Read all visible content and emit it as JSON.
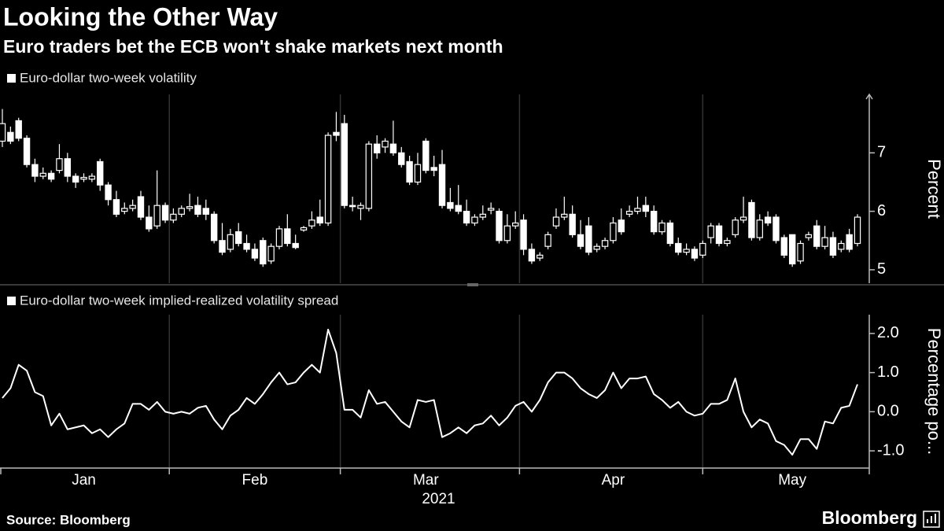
{
  "title": "Looking the Other Way",
  "subtitle": "Euro traders bet the ECB won't shake markets next month",
  "source": "Source: Bloomberg",
  "logo": "Bloomberg",
  "chart_data": [
    {
      "type": "candlestick",
      "ylabel": "Percent",
      "ylim": [
        4.77,
        8.0
      ],
      "yticks": [
        5,
        6,
        7
      ],
      "series": [
        {
          "name": "Euro-dollar two-week volatility",
          "color": "#ffffff",
          "open": [
            7.2,
            7.35,
            7.55,
            7.25,
            6.8,
            6.6,
            6.65,
            6.7,
            6.9,
            6.6,
            6.55,
            6.55,
            6.85,
            6.45,
            6.2,
            6.0,
            6.05,
            6.25,
            5.9,
            5.75,
            6.1,
            5.85,
            5.95,
            6.05,
            6.1,
            6.05,
            5.95,
            5.5,
            5.35,
            5.65,
            5.45,
            5.35,
            5.5,
            5.15,
            5.4,
            5.7,
            5.45,
            5.68,
            5.75,
            5.9,
            5.8,
            7.35,
            7.5,
            6.1,
            6.05,
            6.05,
            7.15,
            7.1,
            7.15,
            7.0,
            6.85,
            6.5,
            7.2,
            6.75,
            6.8,
            6.15,
            6.1,
            6.0,
            5.8,
            5.9,
            6.02,
            6.0,
            5.5,
            5.75,
            5.85,
            5.35,
            5.2,
            5.4,
            5.75,
            5.9,
            5.95,
            5.6,
            5.75,
            5.35,
            5.4,
            5.5,
            5.85,
            5.95,
            6.0,
            6.1,
            6.0,
            5.65,
            5.8,
            5.45,
            5.3,
            5.35,
            5.25,
            5.55,
            5.75,
            5.45,
            5.6,
            5.85,
            6.15,
            5.55,
            5.9,
            5.9,
            5.55,
            5.6,
            5.15,
            5.55,
            5.75,
            5.4,
            5.55,
            5.35,
            5.6,
            5.45
          ],
          "high": [
            7.75,
            7.45,
            7.6,
            7.3,
            6.9,
            6.75,
            6.7,
            7.15,
            7.0,
            6.65,
            6.65,
            6.65,
            6.9,
            6.5,
            6.35,
            6.15,
            6.2,
            6.35,
            6.1,
            6.7,
            6.15,
            6.05,
            6.1,
            6.3,
            6.25,
            6.2,
            6.0,
            5.8,
            5.7,
            5.8,
            5.6,
            5.45,
            5.55,
            5.45,
            5.75,
            5.95,
            5.6,
            5.75,
            6.0,
            6.2,
            7.35,
            7.7,
            7.65,
            6.25,
            6.15,
            7.2,
            7.3,
            7.25,
            7.55,
            7.1,
            6.95,
            7.0,
            7.25,
            6.95,
            7.05,
            6.4,
            6.45,
            6.2,
            5.95,
            6.1,
            6.15,
            6.05,
            5.95,
            6.0,
            5.95,
            5.45,
            5.3,
            5.65,
            6.05,
            6.25,
            6.1,
            5.85,
            5.9,
            5.45,
            5.55,
            5.9,
            6.05,
            6.1,
            6.25,
            6.25,
            6.1,
            5.85,
            5.85,
            5.55,
            5.45,
            5.4,
            5.5,
            5.8,
            5.8,
            5.55,
            5.9,
            6.25,
            6.2,
            5.95,
            6.0,
            5.95,
            5.6,
            5.6,
            5.5,
            5.65,
            5.85,
            5.75,
            5.65,
            5.5,
            5.7,
            5.95
          ],
          "low": [
            7.1,
            7.15,
            7.2,
            6.75,
            6.5,
            6.55,
            6.5,
            6.65,
            6.5,
            6.4,
            6.5,
            6.5,
            6.35,
            6.1,
            5.9,
            5.95,
            6.0,
            5.85,
            5.65,
            5.7,
            5.8,
            5.8,
            5.9,
            6.0,
            5.9,
            5.85,
            5.45,
            5.25,
            5.3,
            5.4,
            5.3,
            5.15,
            5.05,
            5.1,
            5.35,
            5.4,
            5.35,
            5.65,
            5.7,
            5.75,
            5.75,
            7.2,
            6.05,
            6.0,
            5.85,
            6.0,
            6.9,
            7.0,
            6.95,
            6.75,
            6.45,
            6.45,
            6.65,
            6.6,
            6.05,
            6.0,
            5.95,
            5.75,
            5.75,
            5.85,
            5.95,
            5.45,
            5.45,
            5.7,
            5.25,
            5.1,
            5.15,
            5.35,
            5.7,
            5.85,
            5.55,
            5.35,
            5.25,
            5.3,
            5.35,
            5.45,
            5.6,
            5.9,
            5.95,
            5.9,
            5.6,
            5.6,
            5.4,
            5.25,
            5.25,
            5.15,
            5.2,
            5.45,
            5.4,
            5.4,
            5.55,
            5.8,
            5.5,
            5.5,
            5.75,
            5.45,
            5.2,
            5.05,
            5.1,
            5.5,
            5.35,
            5.35,
            5.2,
            5.3,
            5.3,
            5.4
          ],
          "close": [
            7.5,
            7.2,
            7.25,
            6.8,
            6.6,
            6.65,
            6.55,
            6.9,
            6.6,
            6.5,
            6.58,
            6.6,
            6.45,
            6.2,
            5.95,
            6.05,
            6.1,
            5.9,
            5.7,
            6.1,
            5.85,
            5.95,
            6.05,
            6.08,
            5.95,
            5.95,
            5.5,
            5.3,
            5.6,
            5.45,
            5.35,
            5.2,
            5.1,
            5.4,
            5.7,
            5.45,
            5.38,
            5.72,
            5.85,
            5.8,
            7.3,
            7.3,
            6.1,
            6.08,
            6.1,
            7.15,
            7.0,
            7.2,
            7.0,
            6.8,
            6.5,
            6.8,
            6.7,
            6.7,
            6.1,
            6.05,
            6.0,
            5.8,
            5.9,
            5.95,
            6.05,
            5.5,
            5.75,
            5.8,
            5.35,
            5.15,
            5.25,
            5.6,
            5.9,
            5.95,
            5.6,
            5.4,
            5.3,
            5.4,
            5.5,
            5.8,
            5.65,
            6.0,
            6.05,
            6.0,
            5.65,
            5.8,
            5.45,
            5.3,
            5.35,
            5.2,
            5.45,
            5.75,
            5.45,
            5.5,
            5.85,
            5.9,
            5.55,
            5.85,
            5.8,
            5.5,
            5.25,
            5.1,
            5.45,
            5.6,
            5.4,
            5.55,
            5.25,
            5.45,
            5.35,
            5.9
          ]
        }
      ]
    },
    {
      "type": "line",
      "ylabel": "Percentage po...",
      "xlabel": "2021",
      "ylim": [
        -1.44,
        2.48
      ],
      "yticks": [
        {
          "value": 2,
          "label": "2.0"
        },
        {
          "value": 1,
          "label": "1.0"
        },
        {
          "value": 0,
          "label": "0.0"
        },
        {
          "value": -1,
          "label": "-1.0"
        }
      ],
      "categories": [
        null,
        null,
        null,
        null,
        null,
        null,
        null,
        null,
        null,
        null,
        "Jan",
        null,
        null,
        null,
        null,
        null,
        null,
        null,
        null,
        null,
        null,
        null,
        null,
        null,
        null,
        null,
        null,
        null,
        null,
        null,
        null,
        "Feb",
        null,
        null,
        null,
        null,
        null,
        null,
        null,
        null,
        null,
        null,
        null,
        null,
        null,
        null,
        null,
        null,
        null,
        null,
        null,
        null,
        "Mar",
        null,
        null,
        null,
        null,
        null,
        null,
        null,
        null,
        null,
        null,
        null,
        null,
        null,
        null,
        null,
        null,
        null,
        null,
        null,
        null,
        null,
        null,
        "Apr",
        null,
        null,
        null,
        null,
        null,
        null,
        null,
        null,
        null,
        null,
        null,
        null,
        null,
        null,
        null,
        null,
        null,
        null,
        null,
        null,
        null,
        "May",
        null,
        null,
        null,
        null,
        null,
        null,
        null,
        null
      ],
      "series": [
        {
          "name": "Euro-dollar two-week implied-realized volatility spread",
          "color": "#ffffff",
          "values": [
            0.35,
            0.6,
            1.2,
            1.05,
            0.5,
            0.4,
            -0.35,
            -0.05,
            -0.45,
            -0.4,
            -0.35,
            -0.55,
            -0.45,
            -0.65,
            -0.45,
            -0.3,
            0.2,
            0.2,
            0.05,
            0.25,
            0.0,
            -0.05,
            0.0,
            -0.05,
            0.1,
            0.15,
            -0.2,
            -0.45,
            -0.1,
            0.05,
            0.35,
            0.2,
            0.45,
            0.75,
            1.0,
            0.7,
            0.75,
            1.0,
            1.2,
            1.0,
            2.1,
            1.5,
            0.05,
            0.05,
            -0.15,
            0.55,
            0.2,
            0.25,
            0.0,
            -0.25,
            -0.4,
            0.3,
            0.25,
            0.3,
            -0.65,
            -0.55,
            -0.4,
            -0.55,
            -0.35,
            -0.3,
            -0.1,
            -0.35,
            -0.15,
            0.15,
            0.25,
            0.0,
            0.3,
            0.75,
            1.0,
            1.0,
            0.85,
            0.6,
            0.45,
            0.35,
            0.55,
            1.0,
            0.6,
            0.85,
            0.85,
            0.9,
            0.45,
            0.3,
            0.1,
            0.25,
            0.0,
            -0.1,
            -0.05,
            0.2,
            0.2,
            0.3,
            0.85,
            0.0,
            -0.4,
            -0.2,
            -0.3,
            -0.75,
            -0.85,
            -1.1,
            -0.7,
            -0.7,
            -0.95,
            -0.25,
            -0.3,
            0.1,
            0.15,
            0.7
          ]
        }
      ]
    }
  ]
}
